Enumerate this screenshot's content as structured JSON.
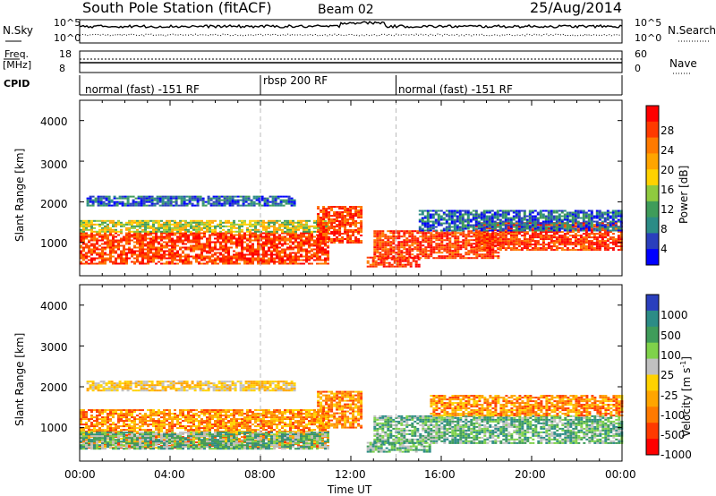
{
  "header": {
    "station": "South Pole Station (fitACF)",
    "beam": "Beam 02",
    "date": "25/Aug/2014"
  },
  "top_panel": {
    "nsky_label": "N.Sky",
    "nsearch_label": "N.Search",
    "left_ticks": [
      "10^5",
      "10^0"
    ],
    "right_ticks": [
      "10^5",
      "10^0"
    ],
    "freq_label_line1": "Freq.",
    "freq_label_line2": "[MHz]",
    "freq_ticks": [
      "18",
      "8"
    ],
    "nave_label": "Nave",
    "nave_ticks": [
      "60",
      "0"
    ],
    "cpid_label": "CPID",
    "cpid_segments": [
      {
        "label": "normal (fast) -151 RF",
        "start_hour": 0,
        "end_hour": 8
      },
      {
        "label": "rbsp 200 RF",
        "start_hour": 8,
        "end_hour": 14
      },
      {
        "label": "normal (fast) -151 RF",
        "start_hour": 14,
        "end_hour": 24
      }
    ]
  },
  "chart_data": [
    {
      "type": "heatmap",
      "quantity": "Power",
      "ylabel": "Slant Range [km]",
      "xlabel": "",
      "xlim": [
        0,
        24
      ],
      "ylim": [
        180,
        4500
      ],
      "y_ticks": [
        1000,
        2000,
        3000,
        4000
      ],
      "colorbar": {
        "label": "Power [dB]",
        "tick_labels": [
          "28",
          "24",
          "20",
          "16",
          "12",
          "8",
          "4"
        ],
        "colors": [
          "#ff0000",
          "#ff3a00",
          "#ff7a00",
          "#ffa500",
          "#ffd200",
          "#8fca3f",
          "#3f9c5a",
          "#2c8c86",
          "#2a3fbd",
          "#0000ff"
        ]
      },
      "regions": [
        {
          "x_start": 0.0,
          "x_end": 11.0,
          "y_low": 500,
          "y_high": 1250,
          "level": "high"
        },
        {
          "x_start": 0.0,
          "x_end": 11.0,
          "y_low": 1250,
          "y_high": 1550,
          "level": "mid"
        },
        {
          "x_start": 0.3,
          "x_end": 9.5,
          "y_low": 1900,
          "y_high": 2150,
          "level": "low"
        },
        {
          "x_start": 10.5,
          "x_end": 12.5,
          "y_low": 1000,
          "y_high": 1900,
          "level": "high"
        },
        {
          "x_start": 12.7,
          "x_end": 15.0,
          "y_low": 400,
          "y_high": 650,
          "level": "high"
        },
        {
          "x_start": 13.0,
          "x_end": 18.5,
          "y_low": 600,
          "y_high": 1300,
          "level": "high"
        },
        {
          "x_start": 17.5,
          "x_end": 24.0,
          "y_low": 800,
          "y_high": 1500,
          "level": "high"
        },
        {
          "x_start": 15.0,
          "x_end": 24.0,
          "y_low": 1300,
          "y_high": 1800,
          "level": "low"
        }
      ]
    },
    {
      "type": "heatmap",
      "quantity": "Velocity",
      "ylabel": "Slant Range [km]",
      "xlabel": "Time UT",
      "xlim": [
        0,
        24
      ],
      "ylim": [
        180,
        4500
      ],
      "y_ticks": [
        1000,
        2000,
        3000,
        4000
      ],
      "x_ticks": [
        "00:00",
        "04:00",
        "08:00",
        "12:00",
        "16:00",
        "20:00",
        "00:00"
      ],
      "colorbar": {
        "label": "Velocity [m s",
        "label_superscript": "-1",
        "label_suffix": "]",
        "tick_labels": [
          "1000",
          "500",
          "100",
          "25",
          "-25",
          "-100",
          "-500",
          "-1000"
        ],
        "colors": [
          "#2a3fbd",
          "#2c8c86",
          "#3f9c5a",
          "#7fd24a",
          "#c0c0c0",
          "#ffd200",
          "#ffa500",
          "#ff7a00",
          "#ff3a00",
          "#ff0000"
        ]
      },
      "regions": [
        {
          "x_start": 0.0,
          "x_end": 11.0,
          "y_low": 500,
          "y_high": 1450,
          "level": "negative"
        },
        {
          "x_start": 0.0,
          "x_end": 11.0,
          "y_low": 500,
          "y_high": 900,
          "level": "positive"
        },
        {
          "x_start": 0.3,
          "x_end": 9.5,
          "y_low": 1900,
          "y_high": 2150,
          "level": "near-zero"
        },
        {
          "x_start": 10.5,
          "x_end": 12.5,
          "y_low": 1000,
          "y_high": 1900,
          "level": "negative"
        },
        {
          "x_start": 12.7,
          "x_end": 15.5,
          "y_low": 400,
          "y_high": 650,
          "level": "positive"
        },
        {
          "x_start": 13.0,
          "x_end": 24.0,
          "y_low": 600,
          "y_high": 1300,
          "level": "positive"
        },
        {
          "x_start": 15.5,
          "x_end": 24.0,
          "y_low": 1300,
          "y_high": 1800,
          "level": "negative"
        }
      ]
    }
  ]
}
